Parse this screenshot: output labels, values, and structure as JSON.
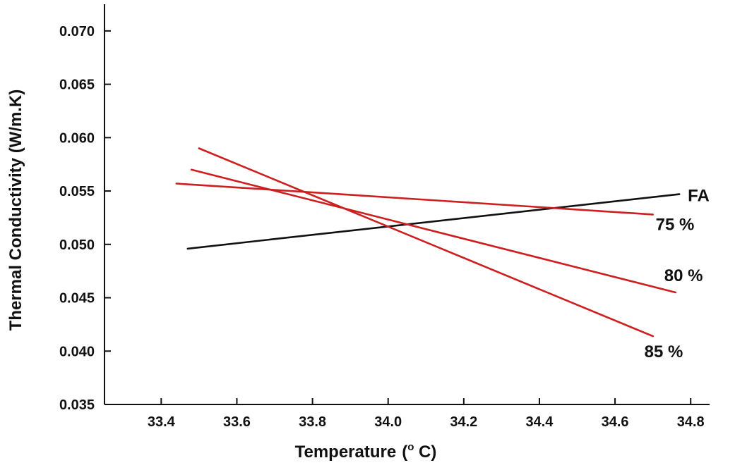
{
  "chart_data": {
    "type": "line",
    "title": "",
    "xlabel": "Temperature",
    "xlabel_unit_prefix": "(",
    "xlabel_unit_sup": "o",
    "xlabel_unit_suffix": " C)",
    "ylabel": "Thermal Conductivity (W/m.K)",
    "xlim": [
      33.25,
      34.85
    ],
    "ylim": [
      0.035,
      0.0725
    ],
    "xticks": [
      "33.4",
      "33.6",
      "33.8",
      "34.0",
      "34.2",
      "34.4",
      "34.6",
      "34.8"
    ],
    "yticks": [
      "0.035",
      "0.040",
      "0.045",
      "0.050",
      "0.055",
      "0.060",
      "0.065",
      "0.070"
    ],
    "grid": false,
    "series": [
      {
        "name": "FA",
        "color": "#111111",
        "x": [
          33.47,
          34.77
        ],
        "y": [
          0.0496,
          0.0547
        ]
      },
      {
        "name": "75 %",
        "color": "#cc1f1f",
        "x": [
          33.44,
          34.7
        ],
        "y": [
          0.0557,
          0.0528
        ]
      },
      {
        "name": "80 %",
        "color": "#cc1f1f",
        "x": [
          33.48,
          34.76
        ],
        "y": [
          0.057,
          0.0455
        ]
      },
      {
        "name": "85 %",
        "color": "#cc1f1f",
        "x": [
          33.5,
          34.7
        ],
        "y": [
          0.059,
          0.0414
        ]
      }
    ]
  }
}
